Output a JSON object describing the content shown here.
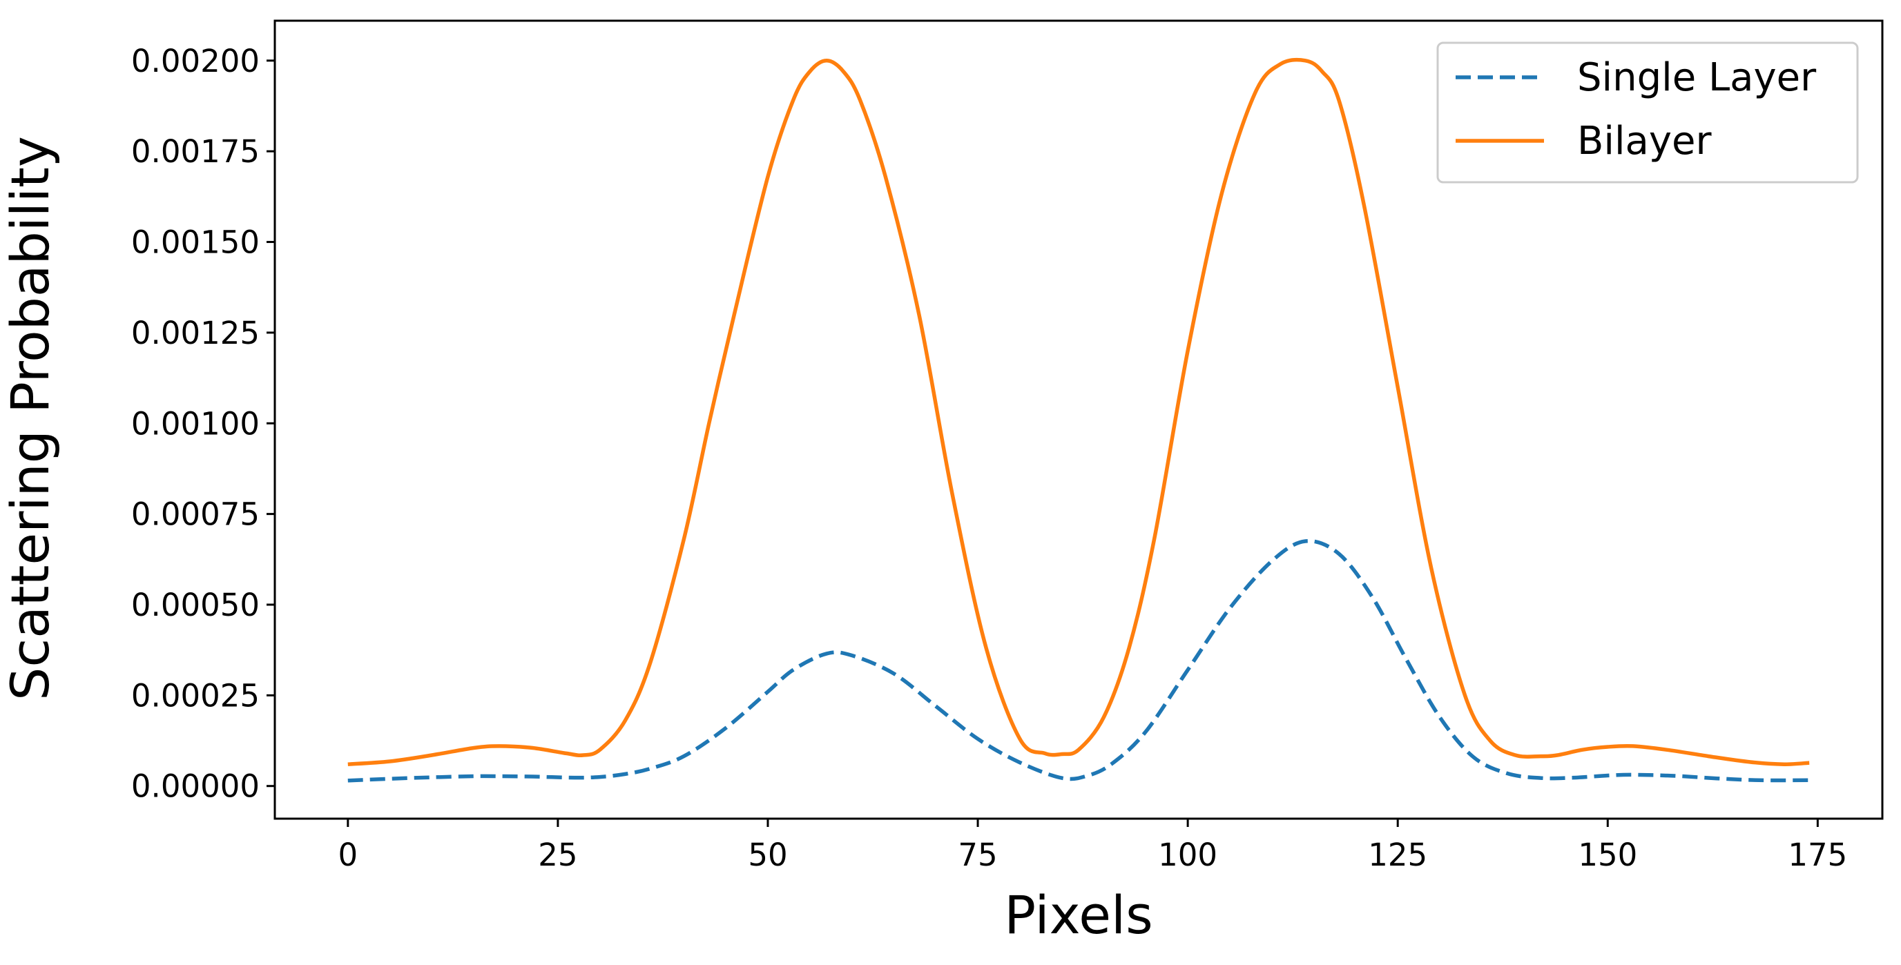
{
  "chart_data": {
    "type": "line",
    "title": "",
    "xlabel": "Pixels",
    "ylabel": "Scattering Probability",
    "xlim": [
      -8.7,
      182.7
    ],
    "ylim": [
      -9e-05,
      0.00211
    ],
    "xticks": [
      0,
      25,
      50,
      75,
      100,
      125,
      150,
      175
    ],
    "xtick_labels": [
      "0",
      "25",
      "50",
      "75",
      "100",
      "125",
      "150",
      "175"
    ],
    "yticks": [
      0,
      0.00025,
      0.0005,
      0.00075,
      0.001,
      0.00125,
      0.0015,
      0.00175,
      0.002
    ],
    "ytick_labels": [
      "0.00000",
      "0.00025",
      "0.00050",
      "0.00075",
      "0.00100",
      "0.00125",
      "0.00150",
      "0.00175",
      "0.00200"
    ],
    "grid": false,
    "legend_position": "top-right",
    "series": [
      {
        "name": "Single Layer",
        "color": "#1f77b4",
        "dash": "dashed",
        "x": [
          0,
          5,
          10,
          15,
          18,
          22,
          27,
          30,
          33,
          36,
          40,
          45,
          50,
          53,
          57,
          60,
          65,
          70,
          75,
          80,
          85,
          88,
          91,
          95,
          100,
          105,
          110,
          114,
          118,
          122,
          126,
          130,
          134,
          138,
          142,
          146,
          150,
          153,
          158,
          163,
          168,
          174
        ],
        "y": [
          1.5e-05,
          2e-05,
          2.4e-05,
          2.7e-05,
          2.7e-05,
          2.6e-05,
          2.3e-05,
          2.5e-05,
          3.3e-05,
          4.8e-05,
          8.2e-05,
          0.00016,
          0.00026,
          0.00032,
          0.000365,
          0.00036,
          0.00031,
          0.00022,
          0.00013,
          6.5e-05,
          2.2e-05,
          2.8e-05,
          6.2e-05,
          0.00015,
          0.00032,
          0.00049,
          0.00062,
          0.000675,
          0.00064,
          0.00052,
          0.00035,
          0.00019,
          8e-05,
          3.5e-05,
          2.2e-05,
          2.3e-05,
          2.9e-05,
          3.1e-05,
          2.8e-05,
          2.1e-05,
          1.6e-05,
          1.6e-05
        ]
      },
      {
        "name": "Bilayer",
        "color": "#ff7f0e",
        "dash": "solid",
        "x": [
          0,
          5,
          10,
          15,
          18,
          22,
          26,
          28,
          30,
          33,
          36,
          40,
          43,
          46,
          50,
          53,
          55,
          57,
          59,
          61,
          64,
          68,
          72,
          76,
          80,
          83,
          85,
          87,
          90,
          93,
          96,
          100,
          104,
          108,
          111,
          114,
          116,
          118,
          121,
          125,
          129,
          133,
          136,
          139,
          142,
          144,
          147,
          150,
          153,
          157,
          162,
          167,
          171,
          174
        ],
        "y": [
          6e-05,
          6.8e-05,
          8.5e-05,
          0.000105,
          0.00011,
          0.000105,
          9e-05,
          8.5e-05,
          0.0001,
          0.00018,
          0.00034,
          0.00068,
          0.001,
          0.0013,
          0.00168,
          0.00189,
          0.00197,
          0.002,
          0.00197,
          0.00189,
          0.00168,
          0.0013,
          0.0008,
          0.00038,
          0.00013,
          9e-05,
          8.8e-05,
          0.0001,
          0.00019,
          0.00038,
          0.00068,
          0.0012,
          0.00163,
          0.00191,
          0.00199,
          0.002,
          0.00197,
          0.00189,
          0.0016,
          0.0011,
          0.0006,
          0.00025,
          0.000125,
          8.5e-05,
          8.2e-05,
          8.5e-05,
          0.0001,
          0.000108,
          0.00011,
          0.0001,
          8.2e-05,
          6.6e-05,
          6e-05,
          6.4e-05
        ]
      }
    ]
  }
}
